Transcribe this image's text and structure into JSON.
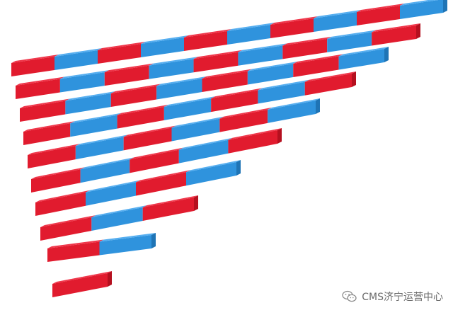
{
  "photo": {
    "subject": "number-rods",
    "colors": {
      "red": "#e11b2e",
      "red_dark": "#b5101f",
      "red_top": "#f0364a",
      "blue": "#2f93dd",
      "blue_dark": "#1f74b5",
      "blue_top": "#55aef0"
    },
    "rods": [
      {
        "segments": 10
      },
      {
        "segments": 9
      },
      {
        "segments": 8
      },
      {
        "segments": 7
      },
      {
        "segments": 6
      },
      {
        "segments": 5
      },
      {
        "segments": 4
      },
      {
        "segments": 3
      },
      {
        "segments": 2
      },
      {
        "segments": 1
      }
    ]
  },
  "watermark": {
    "icon": "wechat-icon",
    "text": "CMS济宁运营中心"
  }
}
